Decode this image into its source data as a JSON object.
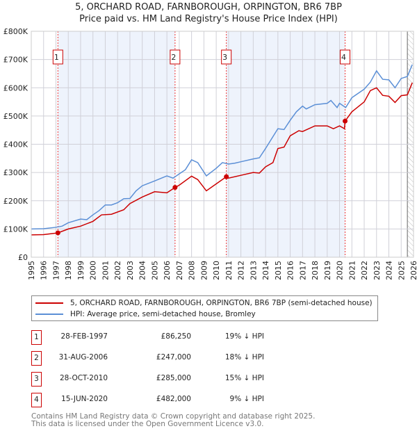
{
  "chart_data": {
    "type": "line",
    "title": "5, ORCHARD ROAD, FARNBOROUGH, ORPINGTON, BR6 7BP",
    "subtitle": "Price paid vs. HM Land Registry's House Price Index (HPI)",
    "xlim": [
      1995,
      2026
    ],
    "ylim": [
      0,
      800000
    ],
    "y_ticks": [
      {
        "v": 0,
        "label": "£0"
      },
      {
        "v": 100000,
        "label": "£100K"
      },
      {
        "v": 200000,
        "label": "£200K"
      },
      {
        "v": 300000,
        "label": "£300K"
      },
      {
        "v": 400000,
        "label": "£400K"
      },
      {
        "v": 500000,
        "label": "£500K"
      },
      {
        "v": 600000,
        "label": "£600K"
      },
      {
        "v": 700000,
        "label": "£700K"
      },
      {
        "v": 800000,
        "label": "£800K"
      }
    ],
    "x_ticks": [
      "1995",
      "1996",
      "1997",
      "1998",
      "1999",
      "2000",
      "2001",
      "2002",
      "2003",
      "2004",
      "2005",
      "2006",
      "2007",
      "2008",
      "2009",
      "2010",
      "2011",
      "2012",
      "2013",
      "2014",
      "2015",
      "2016",
      "2017",
      "2018",
      "2019",
      "2020",
      "2021",
      "2022",
      "2023",
      "2024",
      "2025",
      "2026"
    ],
    "grid": true,
    "forecast_hatch_from": 2025.5,
    "shaded_ranges": [
      [
        1997.16,
        2006.66
      ],
      [
        2010.82,
        2020.45
      ]
    ],
    "series": [
      {
        "name": "5, ORCHARD ROAD, FARNBOROUGH, ORPINGTON, BR6 7BP (semi-detached house)",
        "color": "#cc0000",
        "points": [
          [
            1995,
            79000
          ],
          [
            1996,
            80000
          ],
          [
            1997.16,
            86250
          ],
          [
            1998,
            100000
          ],
          [
            1999,
            110000
          ],
          [
            2000,
            127000
          ],
          [
            2000.7,
            150000
          ],
          [
            2001.5,
            152000
          ],
          [
            2002.5,
            168000
          ],
          [
            2003,
            190000
          ],
          [
            2004,
            213000
          ],
          [
            2005,
            232000
          ],
          [
            2006,
            228000
          ],
          [
            2006.66,
            247000
          ],
          [
            2007,
            255000
          ],
          [
            2008,
            287000
          ],
          [
            2008.5,
            275000
          ],
          [
            2009.2,
            235000
          ],
          [
            2010.82,
            285000
          ],
          [
            2011,
            280000
          ],
          [
            2012,
            290000
          ],
          [
            2013,
            300000
          ],
          [
            2013.5,
            298000
          ],
          [
            2014,
            320000
          ],
          [
            2014.6,
            335000
          ],
          [
            2015,
            385000
          ],
          [
            2015.5,
            390000
          ],
          [
            2016,
            430000
          ],
          [
            2016.7,
            448000
          ],
          [
            2017,
            445000
          ],
          [
            2018,
            465000
          ],
          [
            2019,
            465000
          ],
          [
            2019.5,
            455000
          ],
          [
            2020,
            465000
          ],
          [
            2020.4,
            455000
          ],
          [
            2020.45,
            482000
          ],
          [
            2021,
            515000
          ],
          [
            2022,
            550000
          ],
          [
            2022.5,
            590000
          ],
          [
            2023,
            600000
          ],
          [
            2023.5,
            573000
          ],
          [
            2024,
            570000
          ],
          [
            2024.5,
            548000
          ],
          [
            2025,
            572000
          ],
          [
            2025.5,
            575000
          ],
          [
            2025.9,
            618000
          ]
        ]
      },
      {
        "name": "HPI: Average price, semi-detached house, Bromley",
        "color": "#5b8fd6",
        "points": [
          [
            1995,
            100000
          ],
          [
            1996,
            101000
          ],
          [
            1997,
            106000
          ],
          [
            1997.5,
            110000
          ],
          [
            1998,
            122000
          ],
          [
            1999,
            135000
          ],
          [
            1999.5,
            133000
          ],
          [
            2000,
            150000
          ],
          [
            2000.5,
            165000
          ],
          [
            2001,
            185000
          ],
          [
            2001.5,
            185000
          ],
          [
            2002,
            193000
          ],
          [
            2002.5,
            207000
          ],
          [
            2003,
            208000
          ],
          [
            2003.5,
            235000
          ],
          [
            2004,
            253000
          ],
          [
            2005,
            270000
          ],
          [
            2006,
            288000
          ],
          [
            2006.5,
            280000
          ],
          [
            2007,
            295000
          ],
          [
            2007.5,
            310000
          ],
          [
            2008,
            345000
          ],
          [
            2008.5,
            335000
          ],
          [
            2009.2,
            288000
          ],
          [
            2010,
            315000
          ],
          [
            2010.5,
            335000
          ],
          [
            2011,
            330000
          ],
          [
            2011.5,
            333000
          ],
          [
            2012,
            338000
          ],
          [
            2013,
            348000
          ],
          [
            2013.5,
            352000
          ],
          [
            2014,
            385000
          ],
          [
            2014.5,
            420000
          ],
          [
            2015,
            455000
          ],
          [
            2015.5,
            452000
          ],
          [
            2016,
            485000
          ],
          [
            2016.5,
            515000
          ],
          [
            2017,
            535000
          ],
          [
            2017.3,
            525000
          ],
          [
            2018,
            540000
          ],
          [
            2019,
            545000
          ],
          [
            2019.3,
            555000
          ],
          [
            2019.8,
            530000
          ],
          [
            2020,
            545000
          ],
          [
            2020.5,
            530000
          ],
          [
            2021,
            565000
          ],
          [
            2022,
            595000
          ],
          [
            2022.5,
            620000
          ],
          [
            2023,
            660000
          ],
          [
            2023.5,
            630000
          ],
          [
            2024,
            628000
          ],
          [
            2024.5,
            600000
          ],
          [
            2025,
            633000
          ],
          [
            2025.5,
            640000
          ],
          [
            2025.9,
            682000
          ]
        ]
      }
    ],
    "sales": [
      {
        "label": "1",
        "x": 1997.16,
        "y": 86250,
        "date": "28-FEB-1997",
        "price": "£86,250",
        "pct": "19% ↓ HPI"
      },
      {
        "label": "2",
        "x": 2006.66,
        "y": 247000,
        "date": "31-AUG-2006",
        "price": "£247,000",
        "pct": "18% ↓ HPI"
      },
      {
        "label": "3",
        "x": 2010.82,
        "y": 285000,
        "date": "28-OCT-2010",
        "price": "£285,000",
        "pct": "15% ↓ HPI"
      },
      {
        "label": "4",
        "x": 2020.45,
        "y": 482000,
        "date": "15-JUN-2020",
        "price": "£482,000",
        "pct": "9% ↓ HPI"
      }
    ]
  },
  "legend": {
    "red": "5, ORCHARD ROAD, FARNBOROUGH, ORPINGTON, BR6 7BP (semi-detached house)",
    "blue": "HPI: Average price, semi-detached house, Bromley"
  },
  "footer": {
    "line1": "Contains HM Land Registry data © Crown copyright and database right 2025.",
    "line2": "This data is licensed under the Open Government Licence v3.0."
  }
}
